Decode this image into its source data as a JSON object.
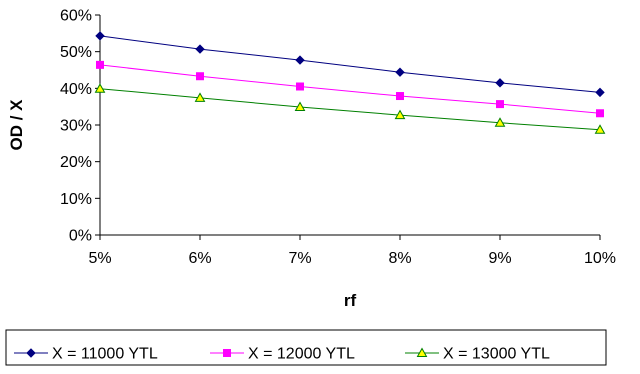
{
  "chart_data": {
    "type": "line",
    "x": [
      "5%",
      "6%",
      "7%",
      "8%",
      "9%",
      "10%"
    ],
    "xlabel": "rf",
    "ylabel": "OD / X",
    "ylim": [
      0,
      60
    ],
    "yticks": [
      "0%",
      "10%",
      "20%",
      "30%",
      "40%",
      "50%",
      "60%"
    ],
    "grid": false,
    "legend": "bottom",
    "series": [
      {
        "name": "X = 11000 YTL",
        "values": [
          54.3,
          50.7,
          47.7,
          44.4,
          41.5,
          38.9
        ],
        "color": "#000080",
        "marker": "diamond"
      },
      {
        "name": "X = 12000 YTL",
        "values": [
          46.4,
          43.3,
          40.5,
          37.9,
          35.7,
          33.2
        ],
        "color": "#ff00ff",
        "marker": "square"
      },
      {
        "name": "X = 13000 YTL",
        "values": [
          39.9,
          37.4,
          34.9,
          32.7,
          30.6,
          28.7
        ],
        "color": "#008000",
        "marker": "triangle",
        "fill": "#ffff00"
      }
    ]
  }
}
